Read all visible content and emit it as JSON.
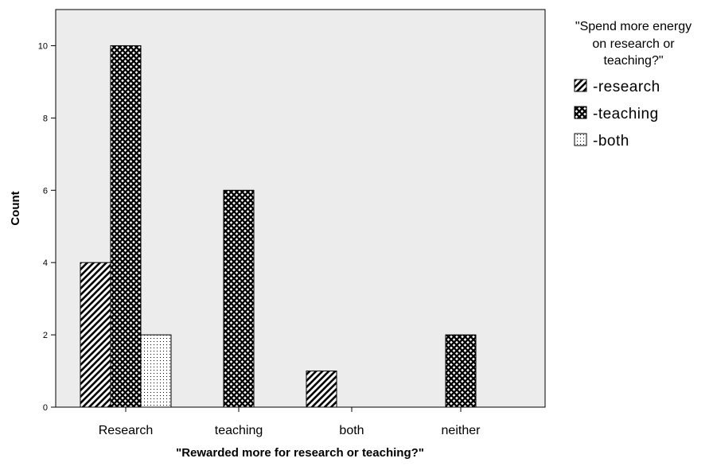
{
  "chart_data": {
    "type": "bar",
    "categories": [
      "Research",
      "teaching",
      "both",
      "neither"
    ],
    "series": [
      {
        "name": "-research",
        "values": [
          4,
          0,
          1,
          0
        ],
        "pattern": "diagonal-hatch"
      },
      {
        "name": "-teaching",
        "values": [
          10,
          6,
          0,
          2
        ],
        "pattern": "crosshatch"
      },
      {
        "name": "-both",
        "values": [
          2,
          0,
          0,
          0
        ],
        "pattern": "dots"
      }
    ],
    "xlabel": "\"Rewarded more for research or teaching?\"",
    "ylabel": "Count",
    "ylim": [
      0,
      11
    ],
    "yticks": [
      0,
      2,
      4,
      6,
      8,
      10
    ],
    "legend_title": [
      "\"Spend more energy",
      "on research or",
      "teaching?\""
    ],
    "legend_position": "top-right",
    "grid": false,
    "colors": {
      "plot_background": "#ececec",
      "bar_fill": "#ffffff",
      "pattern": "#000000"
    }
  }
}
